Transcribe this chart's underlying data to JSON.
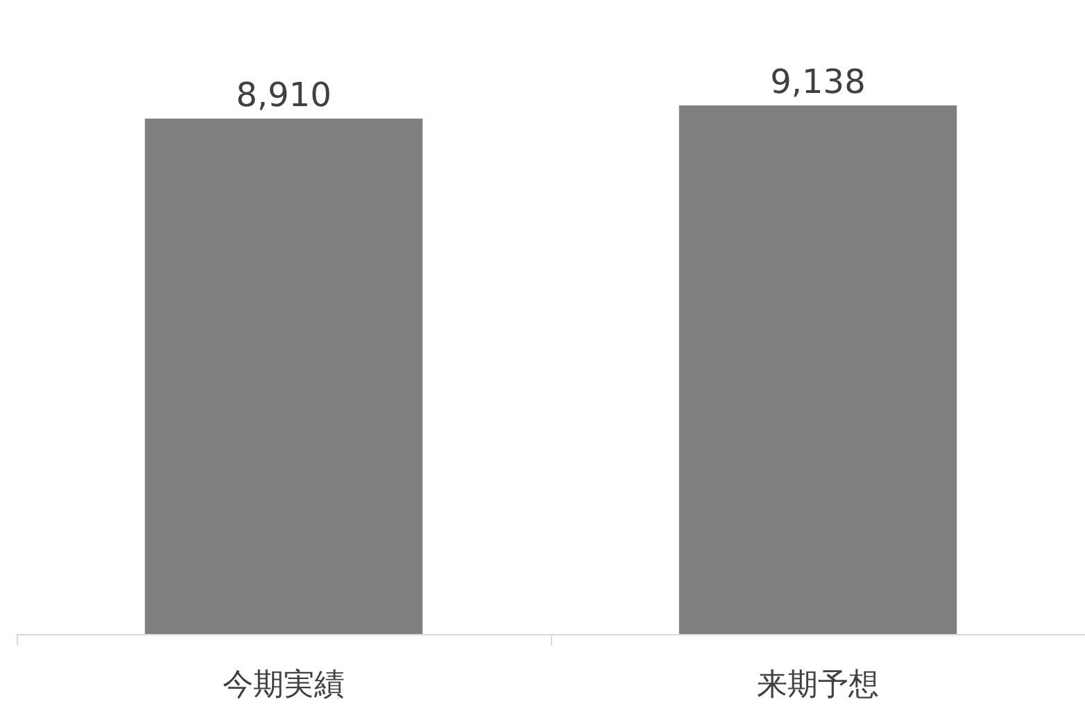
{
  "chart_data": {
    "type": "bar",
    "categories": [
      "今期実績",
      "来期予想"
    ],
    "values": [
      8910,
      9138
    ],
    "value_labels": [
      "8,910",
      "9,138"
    ],
    "color": "#7f7f7f",
    "tick_labels": "x"
  }
}
